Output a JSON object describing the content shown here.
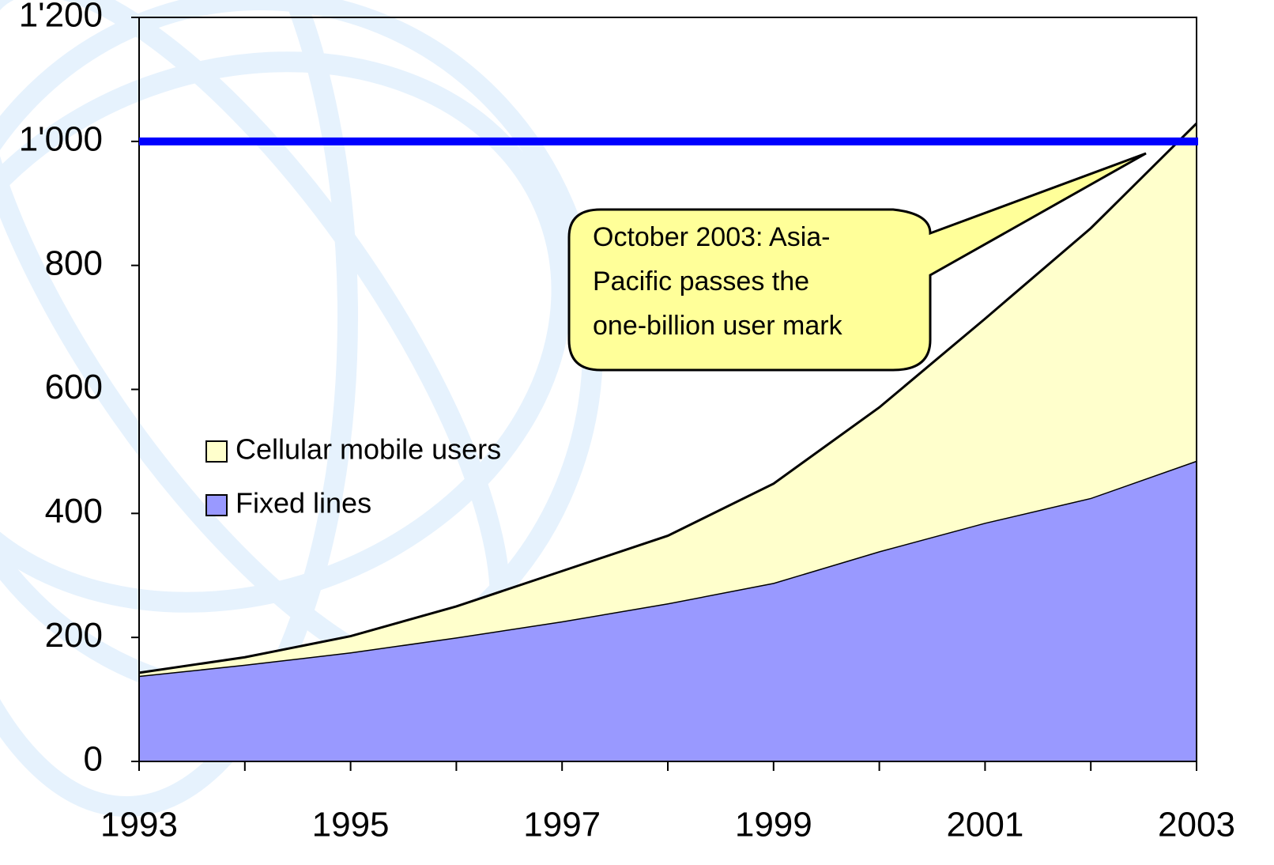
{
  "chart_data": {
    "type": "stacked_area",
    "x": [
      1993,
      1994,
      1995,
      1996,
      1997,
      1998,
      1999,
      2000,
      2001,
      2002,
      2003
    ],
    "series": [
      {
        "name": "Fixed lines",
        "color": "#9999ff",
        "values": [
          138,
          156,
          176,
          200,
          226,
          255,
          288,
          339,
          385,
          425,
          485
        ]
      },
      {
        "name": "Cellular mobile users",
        "color": "#ffffcc",
        "values": [
          5,
          12,
          26,
          50,
          81,
          109,
          160,
          232,
          329,
          435,
          544
        ]
      }
    ],
    "xlim": [
      1993,
      2003
    ],
    "xticks": [
      1993,
      1995,
      1997,
      1999,
      2001,
      2003
    ],
    "ylim": [
      0,
      1200
    ],
    "yticks": [
      0,
      200,
      400,
      600,
      800,
      {
        "value": 1000,
        "label": "1'000"
      },
      {
        "value": 1200,
        "label": "1'200"
      }
    ],
    "reference_line": {
      "value": 1000,
      "color": "#0000ff"
    },
    "annotation": [
      "October 2003: Asia-",
      "Pacific passes the",
      "one-billion user mark"
    ],
    "grid": false
  }
}
